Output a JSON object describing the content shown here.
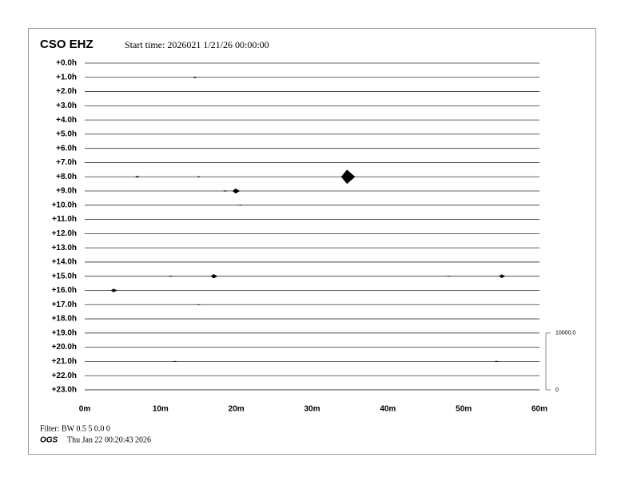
{
  "chart_data": {
    "type": "helicorder",
    "title": "CSO EHZ",
    "subtitle": "Start time: 2026021  1/21/26 00:00:00",
    "xlim": [
      0,
      60
    ],
    "xticks": [
      {
        "value": 0,
        "label": "0m"
      },
      {
        "value": 10,
        "label": "10m"
      },
      {
        "value": 20,
        "label": "20m"
      },
      {
        "value": 30,
        "label": "30m"
      },
      {
        "value": 40,
        "label": "40m"
      },
      {
        "value": 50,
        "label": "50m"
      },
      {
        "value": 60,
        "label": "60m"
      }
    ],
    "color": "#000000",
    "rows": [
      {
        "label": "+0.0h",
        "events": []
      },
      {
        "label": "+1.0h",
        "events": [
          {
            "minute": 14.5,
            "amplitude": 120
          }
        ]
      },
      {
        "label": "+2.0h",
        "events": []
      },
      {
        "label": "+3.0h",
        "events": []
      },
      {
        "label": "+4.0h",
        "events": []
      },
      {
        "label": "+5.0h",
        "events": []
      },
      {
        "label": "+6.0h",
        "events": []
      },
      {
        "label": "+7.0h",
        "events": []
      },
      {
        "label": "+8.0h",
        "events": [
          {
            "minute": 6.9,
            "amplitude": 150
          },
          {
            "minute": 15.0,
            "amplitude": 100
          },
          {
            "minute": 34.6,
            "amplitude": 1250
          }
        ]
      },
      {
        "label": "+9.0h",
        "events": [
          {
            "minute": 18.5,
            "amplitude": 100
          },
          {
            "minute": 19.9,
            "amplitude": 450
          }
        ]
      },
      {
        "label": "+10.0h",
        "events": [
          {
            "minute": 20.5,
            "amplitude": 80
          }
        ]
      },
      {
        "label": "+11.0h",
        "events": []
      },
      {
        "label": "+12.0h",
        "events": []
      },
      {
        "label": "+13.0h",
        "events": []
      },
      {
        "label": "+14.0h",
        "events": []
      },
      {
        "label": "+15.0h",
        "events": [
          {
            "minute": 11.3,
            "amplitude": 100
          },
          {
            "minute": 17.0,
            "amplitude": 380
          },
          {
            "minute": 48.0,
            "amplitude": 80
          },
          {
            "minute": 55.0,
            "amplitude": 320
          }
        ]
      },
      {
        "label": "+16.0h",
        "events": [
          {
            "minute": 3.8,
            "amplitude": 320
          }
        ]
      },
      {
        "label": "+17.0h",
        "events": [
          {
            "minute": 15.0,
            "amplitude": 80
          }
        ]
      },
      {
        "label": "+18.0h",
        "events": []
      },
      {
        "label": "+19.0h",
        "events": []
      },
      {
        "label": "+20.0h",
        "events": []
      },
      {
        "label": "+21.0h",
        "events": [
          {
            "minute": 11.9,
            "amplitude": 80
          },
          {
            "minute": 54.3,
            "amplitude": 100
          }
        ]
      },
      {
        "label": "+22.0h",
        "events": []
      },
      {
        "label": "+23.0h",
        "events": []
      }
    ],
    "scale_ticks": [
      {
        "value": 10000,
        "label": "10000.0"
      },
      0
    ],
    "filter": "Filter: BW 0.5 5 0.0 0",
    "agency": "OGS",
    "generated": "Thu Jan 22 00:20:43 2026"
  }
}
